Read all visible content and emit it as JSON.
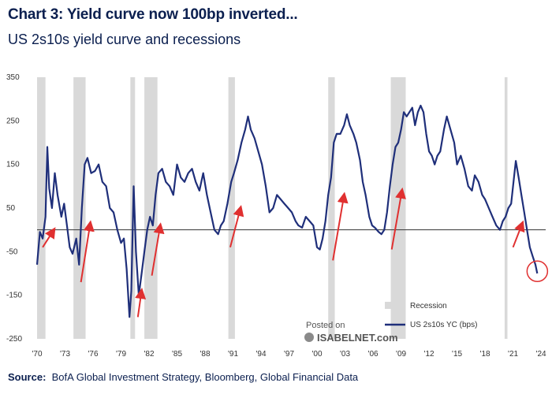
{
  "header": {
    "title": "Chart 3: Yield curve now 100bp inverted...",
    "subtitle": "US 2s10s yield curve and recessions"
  },
  "source": {
    "label": "Source:",
    "text": "BofA Global Investment Strategy, Bloomberg, Global Financial Data"
  },
  "watermark": {
    "line1": "Posted on",
    "line2": "ISABELNET.com"
  },
  "colors": {
    "series": "#1f2f7a",
    "recession": "#d9d9d9",
    "arrow": "#e03030",
    "circle": "#e03030",
    "zero_line": "#333333"
  },
  "chart_data": {
    "type": "line",
    "title": "Chart 3: Yield curve now 100bp inverted...",
    "subtitle": "US 2s10s yield curve and recessions",
    "xlim": [
      1970,
      2024.5
    ],
    "ylim": [
      -250,
      350
    ],
    "x_ticks": [
      1970,
      1973,
      1976,
      1979,
      1982,
      1985,
      1988,
      1991,
      1994,
      1997,
      2000,
      2003,
      2006,
      2009,
      2012,
      2015,
      2018,
      2021,
      2024
    ],
    "x_tick_labels": [
      "'70",
      "'73",
      "'76",
      "'79",
      "'82",
      "'85",
      "'88",
      "'91",
      "'94",
      "'97",
      "'00",
      "'03",
      "'06",
      "'09",
      "'12",
      "'15",
      "'18",
      "'21",
      "'24"
    ],
    "y_ticks": [
      350,
      250,
      150,
      50,
      -50,
      -150,
      -250
    ],
    "y_tick_labels": [
      "350",
      "250",
      "150",
      "50",
      "-50",
      "-150",
      "-250"
    ],
    "legend": [
      {
        "label": "Recession",
        "kind": "band"
      },
      {
        "label": "US 2s10s YC (bps)",
        "kind": "line"
      }
    ],
    "legend_position": "bottom-right",
    "recessions": [
      [
        1970.0,
        1970.9
      ],
      [
        1973.9,
        1975.2
      ],
      [
        1980.0,
        1980.5
      ],
      [
        1981.5,
        1982.9
      ],
      [
        1990.5,
        1991.2
      ],
      [
        2001.2,
        2001.9
      ],
      [
        2007.9,
        2009.5
      ],
      [
        2020.1,
        2020.4
      ]
    ],
    "series": [
      {
        "name": "US 2s10s YC (bps)",
        "points": [
          [
            1970.0,
            -80
          ],
          [
            1970.3,
            -5
          ],
          [
            1970.6,
            -20
          ],
          [
            1970.9,
            30
          ],
          [
            1971.1,
            190
          ],
          [
            1971.3,
            95
          ],
          [
            1971.6,
            50
          ],
          [
            1971.9,
            130
          ],
          [
            1972.2,
            80
          ],
          [
            1972.6,
            30
          ],
          [
            1972.9,
            60
          ],
          [
            1973.2,
            10
          ],
          [
            1973.5,
            -40
          ],
          [
            1973.8,
            -55
          ],
          [
            1974.2,
            -20
          ],
          [
            1974.5,
            -80
          ],
          [
            1974.8,
            50
          ],
          [
            1975.1,
            150
          ],
          [
            1975.4,
            165
          ],
          [
            1975.8,
            130
          ],
          [
            1976.2,
            135
          ],
          [
            1976.6,
            150
          ],
          [
            1977.0,
            110
          ],
          [
            1977.4,
            100
          ],
          [
            1977.8,
            50
          ],
          [
            1978.2,
            40
          ],
          [
            1978.6,
            0
          ],
          [
            1979.0,
            -30
          ],
          [
            1979.3,
            -20
          ],
          [
            1979.6,
            -90
          ],
          [
            1979.9,
            -200
          ],
          [
            1980.1,
            -140
          ],
          [
            1980.35,
            100
          ],
          [
            1980.6,
            -50
          ],
          [
            1980.9,
            -150
          ],
          [
            1981.2,
            -100
          ],
          [
            1981.5,
            -50
          ],
          [
            1981.8,
            0
          ],
          [
            1982.1,
            30
          ],
          [
            1982.4,
            10
          ],
          [
            1982.7,
            80
          ],
          [
            1983.0,
            130
          ],
          [
            1983.4,
            140
          ],
          [
            1983.8,
            110
          ],
          [
            1984.2,
            100
          ],
          [
            1984.6,
            80
          ],
          [
            1985.0,
            150
          ],
          [
            1985.4,
            120
          ],
          [
            1985.8,
            110
          ],
          [
            1986.2,
            130
          ],
          [
            1986.6,
            140
          ],
          [
            1987.0,
            110
          ],
          [
            1987.4,
            90
          ],
          [
            1987.8,
            130
          ],
          [
            1988.2,
            80
          ],
          [
            1988.6,
            40
          ],
          [
            1989.0,
            0
          ],
          [
            1989.4,
            -10
          ],
          [
            1989.7,
            10
          ],
          [
            1990.0,
            20
          ],
          [
            1990.4,
            60
          ],
          [
            1990.8,
            110
          ],
          [
            1991.1,
            130
          ],
          [
            1991.5,
            160
          ],
          [
            1991.9,
            200
          ],
          [
            1992.3,
            230
          ],
          [
            1992.6,
            260
          ],
          [
            1992.9,
            230
          ],
          [
            1993.3,
            210
          ],
          [
            1993.7,
            180
          ],
          [
            1994.1,
            150
          ],
          [
            1994.5,
            100
          ],
          [
            1994.9,
            40
          ],
          [
            1995.3,
            50
          ],
          [
            1995.7,
            80
          ],
          [
            1996.1,
            70
          ],
          [
            1996.5,
            60
          ],
          [
            1996.9,
            50
          ],
          [
            1997.3,
            40
          ],
          [
            1997.7,
            20
          ],
          [
            1998.0,
            10
          ],
          [
            1998.4,
            5
          ],
          [
            1998.8,
            30
          ],
          [
            1999.2,
            20
          ],
          [
            1999.6,
            10
          ],
          [
            2000.0,
            -40
          ],
          [
            2000.3,
            -45
          ],
          [
            2000.6,
            -20
          ],
          [
            2000.9,
            20
          ],
          [
            2001.2,
            80
          ],
          [
            2001.5,
            120
          ],
          [
            2001.8,
            200
          ],
          [
            2002.1,
            220
          ],
          [
            2002.5,
            220
          ],
          [
            2002.9,
            240
          ],
          [
            2003.2,
            265
          ],
          [
            2003.5,
            240
          ],
          [
            2003.9,
            220
          ],
          [
            2004.2,
            200
          ],
          [
            2004.6,
            160
          ],
          [
            2004.9,
            110
          ],
          [
            2005.2,
            80
          ],
          [
            2005.6,
            30
          ],
          [
            2005.9,
            10
          ],
          [
            2006.2,
            5
          ],
          [
            2006.6,
            -5
          ],
          [
            2006.9,
            -10
          ],
          [
            2007.2,
            0
          ],
          [
            2007.5,
            40
          ],
          [
            2007.8,
            100
          ],
          [
            2008.1,
            150
          ],
          [
            2008.4,
            190
          ],
          [
            2008.7,
            200
          ],
          [
            2009.0,
            230
          ],
          [
            2009.3,
            270
          ],
          [
            2009.6,
            260
          ],
          [
            2009.9,
            270
          ],
          [
            2010.2,
            280
          ],
          [
            2010.5,
            240
          ],
          [
            2010.8,
            270
          ],
          [
            2011.1,
            285
          ],
          [
            2011.4,
            270
          ],
          [
            2011.7,
            220
          ],
          [
            2012.0,
            180
          ],
          [
            2012.3,
            170
          ],
          [
            2012.6,
            150
          ],
          [
            2012.9,
            170
          ],
          [
            2013.2,
            180
          ],
          [
            2013.6,
            230
          ],
          [
            2013.9,
            260
          ],
          [
            2014.3,
            230
          ],
          [
            2014.7,
            200
          ],
          [
            2015.0,
            150
          ],
          [
            2015.4,
            170
          ],
          [
            2015.8,
            140
          ],
          [
            2016.2,
            100
          ],
          [
            2016.6,
            90
          ],
          [
            2016.9,
            125
          ],
          [
            2017.3,
            110
          ],
          [
            2017.7,
            80
          ],
          [
            2018.0,
            70
          ],
          [
            2018.4,
            50
          ],
          [
            2018.8,
            30
          ],
          [
            2019.2,
            10
          ],
          [
            2019.6,
            0
          ],
          [
            2019.9,
            20
          ],
          [
            2020.2,
            30
          ],
          [
            2020.5,
            50
          ],
          [
            2020.8,
            60
          ],
          [
            2021.1,
            120
          ],
          [
            2021.3,
            158
          ],
          [
            2021.6,
            120
          ],
          [
            2021.9,
            80
          ],
          [
            2022.2,
            40
          ],
          [
            2022.5,
            0
          ],
          [
            2022.8,
            -40
          ],
          [
            2023.1,
            -60
          ],
          [
            2023.4,
            -80
          ],
          [
            2023.6,
            -100
          ]
        ]
      }
    ],
    "annotations": {
      "arrows": [
        [
          1970.6,
          -40,
          1971.8,
          0
        ],
        [
          1974.7,
          -120,
          1975.7,
          15
        ],
        [
          1980.8,
          -200,
          1981.2,
          -140
        ],
        [
          1982.3,
          -105,
          1983.2,
          10
        ],
        [
          1990.7,
          -40,
          1991.8,
          50
        ],
        [
          2001.7,
          -70,
          2002.9,
          80
        ],
        [
          2008.0,
          -45,
          2009.1,
          90
        ],
        [
          2021.0,
          -40,
          2022.0,
          15
        ]
      ],
      "circle": [
        2023.6,
        -95
      ]
    }
  }
}
